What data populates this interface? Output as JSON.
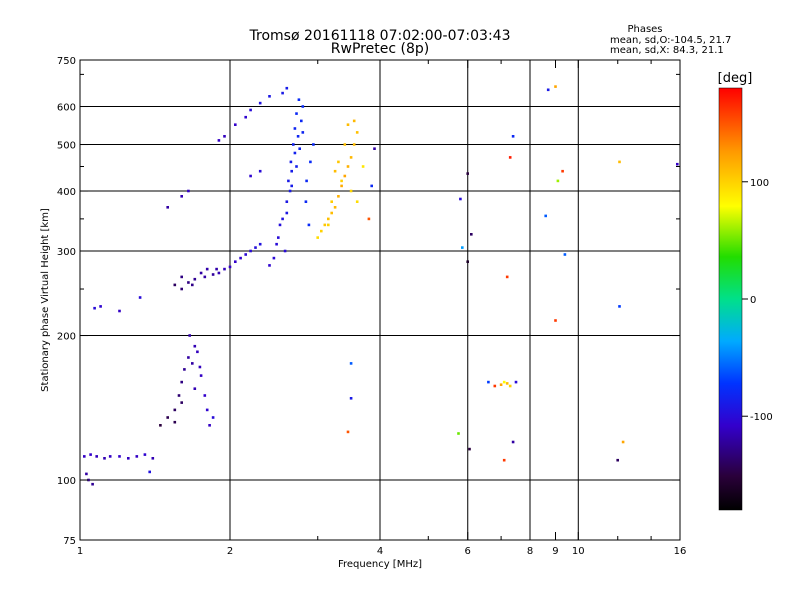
{
  "chart_data": {
    "type": "scatter",
    "title": "Tromsø 20161118 07:02:00-07:03:43",
    "subtitle": "RwPretec (8p)",
    "xlabel": "Frequency [MHz]",
    "ylabel": "Stationary phase Virtual Height [km]",
    "xscale": "log",
    "yscale": "log",
    "xlim": [
      1,
      16
    ],
    "ylim": [
      75,
      750
    ],
    "x_ticks": [
      1,
      2,
      4,
      6,
      8,
      9,
      10,
      16
    ],
    "x_ticks_unlabeled": [
      3,
      5,
      7,
      12,
      14
    ],
    "y_ticks": [
      75,
      100,
      200,
      300,
      400,
      500,
      600,
      750
    ],
    "y_ticks_unlabeled": [
      250,
      350,
      450,
      700
    ],
    "x_grid": [
      1,
      2,
      4,
      6,
      8,
      10,
      16
    ],
    "y_grid": [
      100,
      200,
      300,
      400,
      500,
      600,
      750
    ],
    "grid": true,
    "stats": {
      "heading": "Phases",
      "line_o": "mean, sd,O:-104.5, 21.7",
      "line_x": "mean, sd,X:  84.3, 21.1"
    },
    "colorbar": {
      "label": "[deg]",
      "ticks": [
        "100",
        "0",
        "-100"
      ],
      "tick_values": [
        100,
        0,
        -100
      ],
      "range": [
        -180,
        180
      ],
      "colormap": "rainbow"
    },
    "series": [
      {
        "points": [
          [
            1.02,
            112,
            -110
          ],
          [
            1.05,
            113,
            -108
          ],
          [
            1.08,
            112,
            -112
          ],
          [
            1.12,
            111,
            -115
          ],
          [
            1.15,
            112,
            -110
          ],
          [
            1.2,
            112,
            -108
          ],
          [
            1.25,
            111,
            -112
          ],
          [
            1.3,
            112,
            -110
          ],
          [
            1.35,
            113,
            -105
          ],
          [
            1.4,
            111,
            -115
          ],
          [
            1.04,
            100,
            -130
          ],
          [
            1.06,
            98,
            -125
          ],
          [
            1.03,
            103,
            -120
          ],
          [
            1.38,
            104,
            -95
          ],
          [
            1.07,
            228,
            -100
          ],
          [
            1.1,
            230,
            -105
          ],
          [
            1.2,
            225,
            -110
          ],
          [
            1.32,
            240,
            -100
          ],
          [
            1.45,
            130,
            -150
          ],
          [
            1.5,
            135,
            -145
          ],
          [
            1.55,
            140,
            -140
          ],
          [
            1.58,
            150,
            -135
          ],
          [
            1.6,
            160,
            -130
          ],
          [
            1.62,
            170,
            -125
          ],
          [
            1.65,
            180,
            -120
          ],
          [
            1.68,
            175,
            -120
          ],
          [
            1.7,
            190,
            -115
          ],
          [
            1.72,
            185,
            -112
          ],
          [
            1.75,
            165,
            -110
          ],
          [
            1.78,
            150,
            -108
          ],
          [
            1.8,
            140,
            -105
          ],
          [
            1.82,
            130,
            -110
          ],
          [
            1.66,
            200,
            -118
          ],
          [
            1.6,
            145,
            -140
          ],
          [
            1.55,
            132,
            -145
          ],
          [
            1.7,
            155,
            -115
          ],
          [
            1.74,
            172,
            -112
          ],
          [
            1.85,
            135,
            -100
          ],
          [
            1.55,
            255,
            -140
          ],
          [
            1.6,
            250,
            -135
          ],
          [
            1.65,
            258,
            -130
          ],
          [
            1.7,
            262,
            -125
          ],
          [
            1.75,
            270,
            -120
          ],
          [
            1.8,
            275,
            -118
          ],
          [
            1.85,
            268,
            -122
          ],
          [
            1.9,
            270,
            -115
          ],
          [
            1.95,
            275,
            -112
          ],
          [
            2.0,
            278,
            -110
          ],
          [
            2.05,
            285,
            -108
          ],
          [
            2.1,
            290,
            -105
          ],
          [
            2.15,
            295,
            -102
          ],
          [
            2.2,
            300,
            -100
          ],
          [
            2.25,
            305,
            -98
          ],
          [
            2.3,
            310,
            -95
          ],
          [
            1.6,
            265,
            -130
          ],
          [
            1.68,
            255,
            -128
          ],
          [
            1.78,
            265,
            -120
          ],
          [
            1.88,
            275,
            -118
          ],
          [
            1.5,
            370,
            -120
          ],
          [
            1.6,
            390,
            -115
          ],
          [
            1.65,
            400,
            -110
          ],
          [
            1.9,
            510,
            -110
          ],
          [
            1.95,
            520,
            -112
          ],
          [
            2.05,
            550,
            -108
          ],
          [
            2.15,
            570,
            -105
          ],
          [
            2.2,
            590,
            -100
          ],
          [
            2.3,
            610,
            -95
          ],
          [
            2.4,
            630,
            -92
          ],
          [
            2.55,
            640,
            -90
          ],
          [
            2.6,
            655,
            -88
          ],
          [
            2.2,
            430,
            -105
          ],
          [
            2.3,
            440,
            -100
          ],
          [
            2.5,
            320,
            -100
          ],
          [
            2.55,
            350,
            -95
          ],
          [
            2.6,
            380,
            -92
          ],
          [
            2.62,
            420,
            -90
          ],
          [
            2.65,
            460,
            -88
          ],
          [
            2.68,
            500,
            -85
          ],
          [
            2.7,
            540,
            -82
          ],
          [
            2.72,
            580,
            -80
          ],
          [
            2.75,
            620,
            -78
          ],
          [
            2.58,
            300,
            -100
          ],
          [
            2.52,
            340,
            -98
          ],
          [
            2.64,
            400,
            -90
          ],
          [
            2.66,
            440,
            -88
          ],
          [
            2.7,
            480,
            -85
          ],
          [
            2.74,
            520,
            -82
          ],
          [
            2.78,
            560,
            -80
          ],
          [
            2.8,
            600,
            -78
          ],
          [
            2.85,
            420,
            -80
          ],
          [
            2.9,
            460,
            -78
          ],
          [
            2.45,
            290,
            -102
          ],
          [
            2.48,
            310,
            -100
          ],
          [
            2.6,
            360,
            -92
          ],
          [
            2.66,
            410,
            -88
          ],
          [
            2.72,
            450,
            -86
          ],
          [
            2.76,
            490,
            -84
          ],
          [
            2.8,
            530,
            -82
          ],
          [
            2.84,
            380,
            -80
          ],
          [
            2.88,
            340,
            -78
          ],
          [
            2.94,
            500,
            -80
          ],
          [
            2.4,
            280,
            -105
          ],
          [
            3.0,
            320,
            95
          ],
          [
            3.05,
            330,
            100
          ],
          [
            3.1,
            340,
            105
          ],
          [
            3.15,
            350,
            108
          ],
          [
            3.2,
            360,
            110
          ],
          [
            3.25,
            370,
            112
          ],
          [
            3.3,
            390,
            115
          ],
          [
            3.35,
            410,
            118
          ],
          [
            3.4,
            430,
            120
          ],
          [
            3.45,
            450,
            115
          ],
          [
            3.5,
            470,
            112
          ],
          [
            3.55,
            500,
            110
          ],
          [
            3.6,
            530,
            108
          ],
          [
            3.3,
            460,
            105
          ],
          [
            3.4,
            500,
            108
          ],
          [
            3.45,
            550,
            110
          ],
          [
            3.2,
            380,
            102
          ],
          [
            3.35,
            420,
            100
          ],
          [
            3.5,
            400,
            98
          ],
          [
            3.6,
            380,
            95
          ],
          [
            3.7,
            450,
            90
          ],
          [
            3.15,
            340,
            100
          ],
          [
            3.25,
            440,
            110
          ],
          [
            3.55,
            560,
            112
          ],
          [
            3.8,
            350,
            150
          ],
          [
            3.85,
            410,
            -80
          ],
          [
            3.9,
            490,
            -120
          ],
          [
            3.5,
            175,
            -60
          ],
          [
            3.5,
            148,
            -90
          ],
          [
            3.45,
            126,
            150
          ],
          [
            5.8,
            385,
            -100
          ],
          [
            6.0,
            435,
            -150
          ],
          [
            6.1,
            325,
            -140
          ],
          [
            6.0,
            285,
            -160
          ],
          [
            5.85,
            305,
            -40
          ],
          [
            5.75,
            125,
            50
          ],
          [
            6.05,
            116,
            -150
          ],
          [
            6.6,
            160,
            -70
          ],
          [
            6.8,
            157,
            160
          ],
          [
            7.0,
            158,
            120
          ],
          [
            7.1,
            160,
            80
          ],
          [
            7.2,
            159,
            110
          ],
          [
            7.3,
            157,
            100
          ],
          [
            7.5,
            160,
            -100
          ],
          [
            7.2,
            265,
            160
          ],
          [
            7.3,
            470,
            170
          ],
          [
            7.4,
            520,
            -80
          ],
          [
            7.4,
            120,
            -120
          ],
          [
            7.1,
            110,
            160
          ],
          [
            8.7,
            650,
            -90
          ],
          [
            9.0,
            660,
            120
          ],
          [
            8.6,
            355,
            -60
          ],
          [
            9.1,
            420,
            60
          ],
          [
            9.3,
            440,
            160
          ],
          [
            9.4,
            295,
            -60
          ],
          [
            9.0,
            215,
            160
          ],
          [
            12.1,
            460,
            110
          ],
          [
            12.1,
            230,
            -70
          ],
          [
            12.3,
            120,
            120
          ],
          [
            12.0,
            110,
            -140
          ],
          [
            15.8,
            455,
            -110
          ]
        ]
      }
    ]
  }
}
